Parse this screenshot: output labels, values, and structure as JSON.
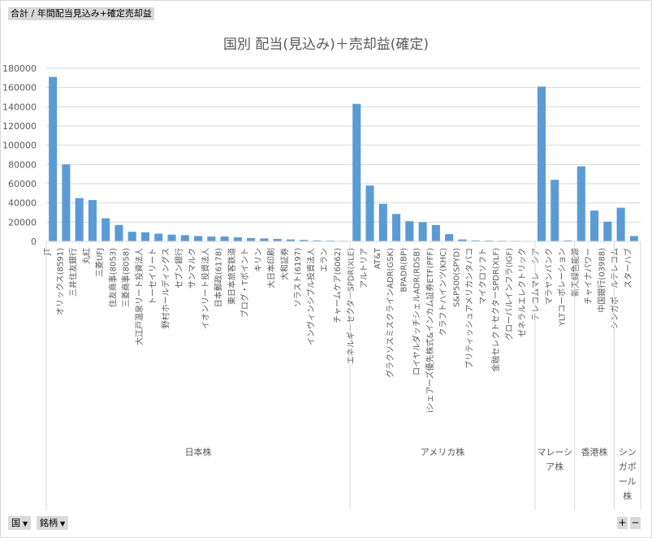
{
  "header": {
    "field_label": "合計 / 年間配当見込み+確定売却益"
  },
  "controls": {
    "country_filter": "国",
    "stock_filter": "銘柄",
    "expand_label": "+",
    "collapse_label": "−"
  },
  "colors": {
    "bar": "#5b9bd5",
    "grid": "#d9d9d9",
    "axis_text": "#595959"
  },
  "chart_data": {
    "type": "bar",
    "title": "国別 配当(見込み)＋売却益(確定)",
    "ylim": [
      0,
      180000
    ],
    "yticks": [
      "0",
      "20000",
      "40000",
      "60000",
      "80000",
      "100000",
      "120000",
      "140000",
      "160000",
      "180000"
    ],
    "grid": true,
    "legend": "none",
    "groups": [
      {
        "name": "日本株",
        "categories": [
          "JT",
          "オリックス(8591)",
          "三井住友銀行",
          "丸紅",
          "三菱UFJ",
          "住友商事(8053)",
          "三菱商事(8058)",
          "大江戸温泉リート投資法人",
          "トーセイリート",
          "野村ホールディングス",
          "セブン銀行",
          "サンマルク",
          "イオンリート投資法人",
          "日本郵政(6178)",
          "東日本旅客鉄道",
          "ブログ・Tポイント",
          "キリン",
          "大日本印刷",
          "大和証券",
          "ソラスト(6197)",
          "インヴィンシブル投資法人",
          "エラン",
          "チャームケア(6062)"
        ],
        "values": [
          171000,
          80000,
          45000,
          43000,
          24000,
          17000,
          10000,
          9500,
          8000,
          7000,
          6500,
          5500,
          5000,
          5000,
          4200,
          3500,
          3000,
          2500,
          2000,
          1500,
          1000,
          800,
          600
        ]
      },
      {
        "name": "アメリカ株",
        "categories": [
          "エネルギーセクターSPDR(XLE)",
          "アルトリア",
          "AT&T",
          "グラクソスミスクラインADR(GSK)",
          "BPADR(BP)",
          "ロイヤルダッチシェルADR(RDSB)",
          "iシェアーズ優先株式&インカム証券ETF(PFF)",
          "クラフトハインツ(KHC)",
          "S&P500(SPYD)",
          "ブリティッシュアメリカンタバコ",
          "マイクロソフト",
          "金融セレクトセクターSPDR(XLF)",
          "グローバルインフラ(IGF)",
          "ゼネラルエレクトリック"
        ],
        "values": [
          143000,
          58000,
          39000,
          28500,
          21000,
          20000,
          17000,
          7500,
          2000,
          1000,
          800,
          700,
          600,
          500
        ]
      },
      {
        "name": "マレーシア株",
        "categories": [
          "テレコムマレーシア",
          "マラヤンバンク",
          "YLTコーポレーション"
        ],
        "values": [
          161000,
          64000,
          1000
        ]
      },
      {
        "name": "香港株",
        "categories": [
          "新天緑色能源",
          "チャイナパワー",
          "中国銀行(03988)"
        ],
        "values": [
          78000,
          32000,
          20500
        ]
      },
      {
        "name": "シンガポール株",
        "categories": [
          "シンガポールテレコム",
          "スターハブ"
        ],
        "values": [
          35000,
          5500
        ]
      }
    ]
  }
}
